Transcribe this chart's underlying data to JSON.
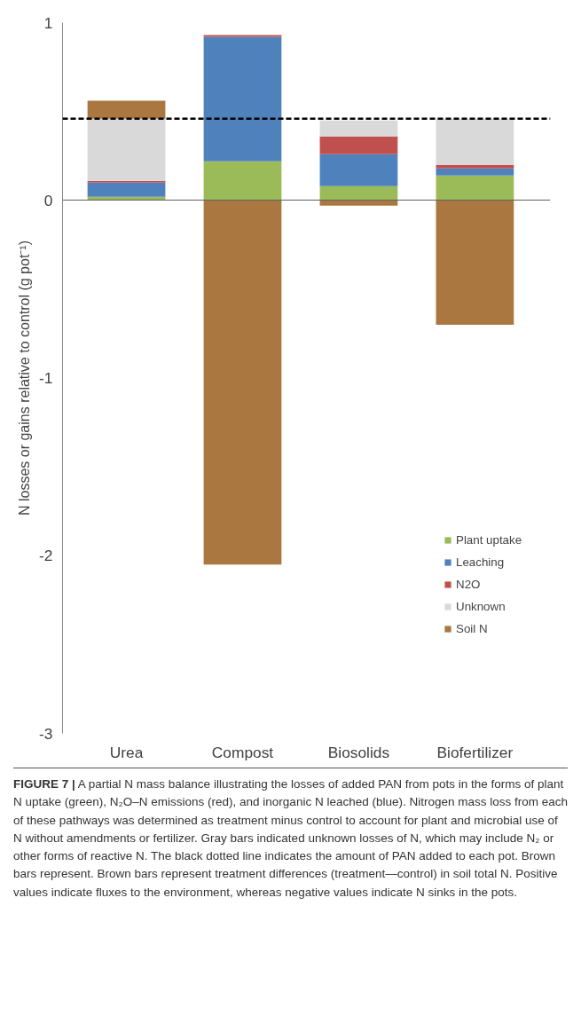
{
  "chart_data": {
    "type": "bar",
    "stacked": true,
    "ylabel": "N losses or gains relative to control (g pot⁻¹)",
    "categories": [
      "Urea",
      "Compost",
      "Biosolids",
      "Biofertilizer"
    ],
    "series": [
      {
        "name": "Plant uptake",
        "color": "#9bbb59",
        "values": [
          0.02,
          0.22,
          0.08,
          0.14
        ]
      },
      {
        "name": "Leaching",
        "color": "#4f81bd",
        "values": [
          0.08,
          0.7,
          0.18,
          0.04
        ]
      },
      {
        "name": "N2O",
        "color": "#c0504d",
        "values": [
          0.01,
          0.01,
          0.1,
          0.02
        ]
      },
      {
        "name": "Unknown",
        "color": "#d9d9d9",
        "values": [
          0.35,
          0,
          0.09,
          0.26
        ]
      },
      {
        "name": "Soil N",
        "color": "#a9773f",
        "values": [
          0.1,
          -2.05,
          -0.03,
          -0.7
        ]
      }
    ],
    "ylim": [
      -3,
      1
    ],
    "yticks": [
      -3,
      -2,
      -1,
      0,
      1
    ],
    "legend": "bottom right",
    "ref_lines": [
      {
        "axis": "y",
        "value": 0.46,
        "color": "#000000",
        "line_style": "dashed"
      }
    ],
    "annotations": [
      "FIGURE 7 |",
      "A partial N mass balance illustrating the losses of added PAN from pots in the forms of plant N uptake (green), N₂O–N emissions (red), and inorganic N leached (blue). Nitrogen mass loss from each of these pathways was determined as treatment minus control to account for plant and microbial use of N without amendments or fertilizer. Gray bars indicated unknown losses of N, which may include N₂ or other forms of reactive N. The black dotted line indicates the amount of PAN added to each pot. Brown bars represent. Brown bars represent treatment differences (treatment—control) in soil total N. Positive values indicate fluxes to the environment, whereas negative values indicate N sinks in the pots."
    ]
  }
}
